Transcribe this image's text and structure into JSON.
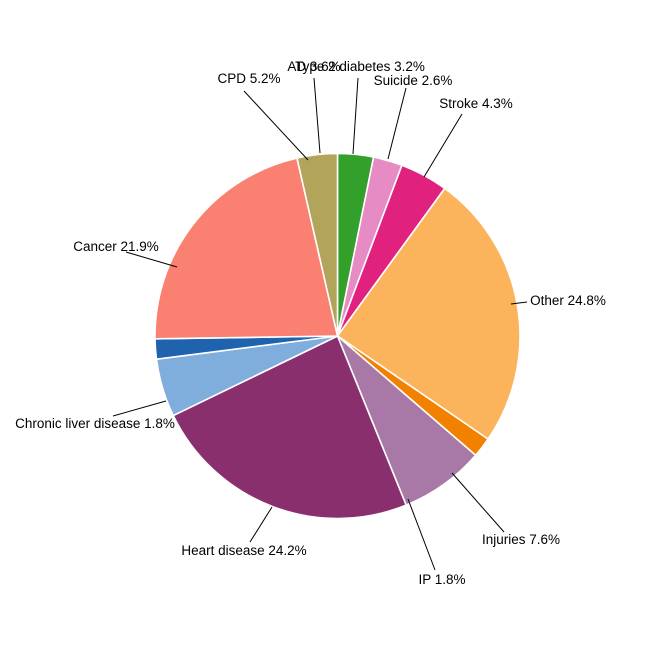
{
  "chart_data": {
    "type": "pie",
    "title": "",
    "legend_position": "none",
    "background_color": "#ffffff",
    "label_color": "#000000",
    "leader_line_color": "#000000",
    "wedge_border_color": "#ffffff",
    "start_angle_deg": 0,
    "direction": "clockwise",
    "slices": [
      {
        "name": "Type 2 diabetes",
        "value_pct": 3.2,
        "label": "Type 2 diabetes 3.2%",
        "color": "#33A02C"
      },
      {
        "name": "Suicide",
        "value_pct": 2.6,
        "label": "Suicide 2.6%",
        "color": "#E78BC5"
      },
      {
        "name": "Stroke",
        "value_pct": 4.3,
        "label": "Stroke 4.3%",
        "color": "#E0217E"
      },
      {
        "name": "Other",
        "value_pct": 24.8,
        "label": "Other 24.8%",
        "color": "#FBB45C"
      },
      {
        "name": "IP",
        "value_pct": 1.8,
        "label": "IP 1.8%",
        "color": "#F28100"
      },
      {
        "name": "Injuries",
        "value_pct": 7.6,
        "label": "Injuries 7.6%",
        "color": "#A878A6"
      },
      {
        "name": "Heart disease",
        "value_pct": 24.2,
        "label": "Heart disease 24.2%",
        "color": "#8A2F6E"
      },
      {
        "name": "CPD",
        "value_pct": 5.2,
        "label": "CPD 5.2%",
        "color": "#7FAEDD"
      },
      {
        "name": "Chronic liver disease",
        "value_pct": 1.8,
        "label": "Chronic liver disease 1.8%",
        "color": "#1F62AE"
      },
      {
        "name": "Cancer",
        "value_pct": 21.9,
        "label": "Cancer 21.9%",
        "color": "#FA8072"
      },
      {
        "name": "AD",
        "value_pct": 3.6,
        "label": "AD 3.6%",
        "color": "#B3A45B"
      }
    ]
  }
}
